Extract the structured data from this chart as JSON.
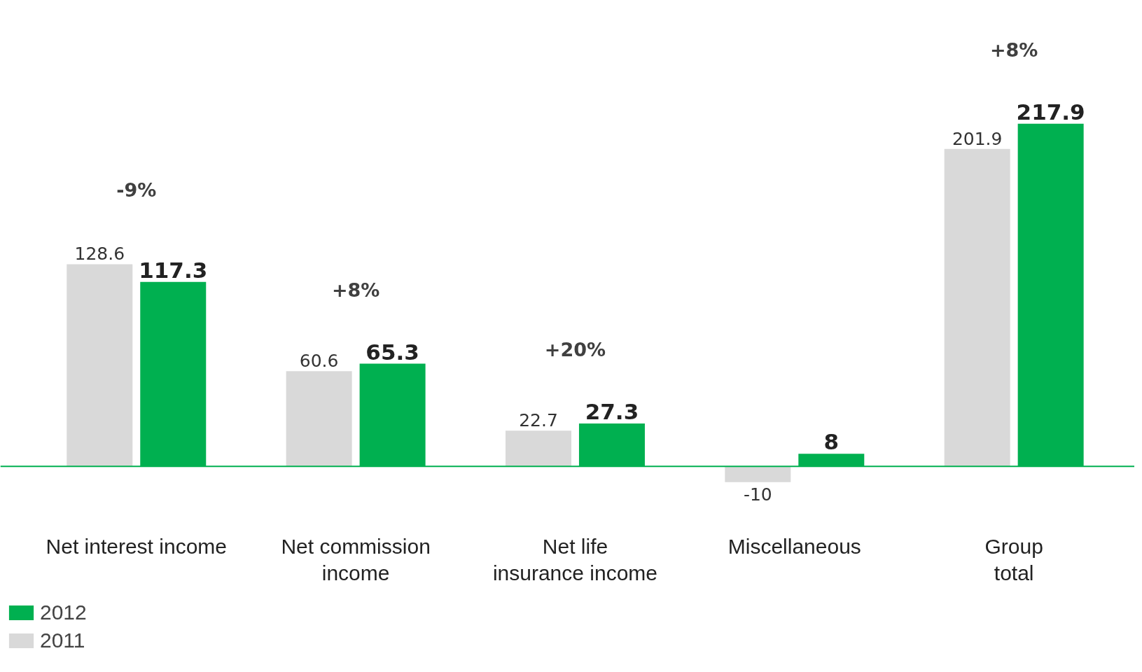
{
  "chart_data": {
    "type": "bar",
    "categories": [
      "Net interest income",
      "Net commission\nincome",
      "Net life\ninsurance income",
      "Miscellaneous",
      "Group\ntotal"
    ],
    "series": [
      {
        "name": "2011",
        "color": "#d9d9d9",
        "values": [
          128.6,
          60.6,
          22.7,
          -10,
          201.9
        ]
      },
      {
        "name": "2012",
        "color": "#00b050",
        "values": [
          117.3,
          65.3,
          27.3,
          8,
          217.9
        ]
      }
    ],
    "data_labels": true,
    "legend": "bottom left",
    "ref_lines": [
      {
        "axis": "y",
        "value": 0,
        "color": "#00b050"
      }
    ],
    "annotations": [
      "-9%",
      "+8%",
      "+20%",
      "+8%"
    ]
  }
}
